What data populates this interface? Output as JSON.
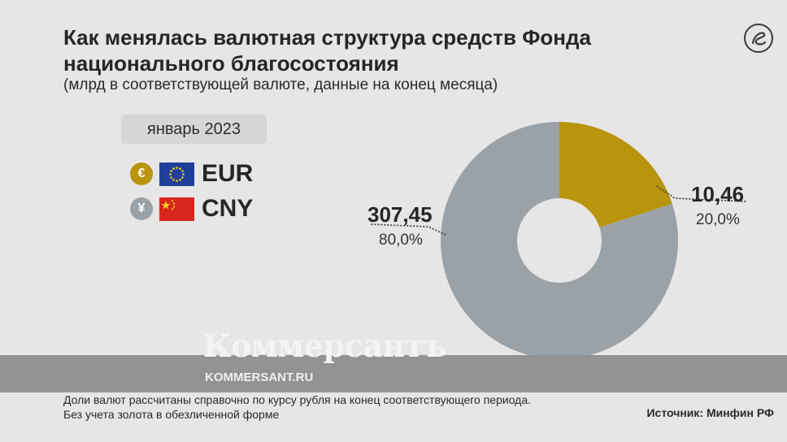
{
  "title": "Как менялась валютная структура средств Фонда национального благосостояния",
  "subtitle": "(млрд в соответствующей валюте, данные на конец месяца)",
  "period": "январь 2023",
  "legend": [
    {
      "symbol": "€",
      "code": "EUR",
      "icon": "eu-flag-icon"
    },
    {
      "symbol": "¥",
      "code": "CNY",
      "icon": "china-flag-icon"
    }
  ],
  "chart_data": {
    "type": "pie",
    "variant": "donut",
    "title": "Как менялась валютная структура средств Фонда национального благосостояния",
    "series": [
      {
        "name": "EUR",
        "value": 10.46,
        "value_label": "10,46",
        "share_pct": 20.0,
        "share_label": "20,0%",
        "color": "#b9940d"
      },
      {
        "name": "CNY",
        "value": 307.45,
        "value_label": "307,45",
        "share_pct": 80.0,
        "share_label": "80,0%",
        "color": "#9aa2a8"
      }
    ]
  },
  "watermark": {
    "brand": "Коммерсантъ",
    "url": "KOMMERSANT.RU"
  },
  "note_lines": [
    "Доли валют рассчитаны справочно по курсу рубля на конец соответствующего периода.",
    "Без учета золота в обезличенной форме"
  ],
  "source": "Источник: Минфин РФ",
  "colors": {
    "background": "#e6e6e6",
    "eur": "#b9940d",
    "cny": "#9aa2a8",
    "band": "#939393"
  }
}
